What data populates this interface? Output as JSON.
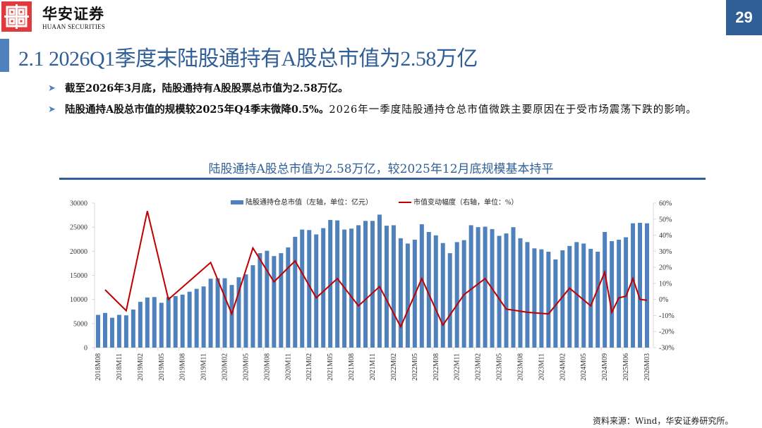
{
  "header": {
    "brand_cn": "华安证券",
    "brand_en": "HUAAN SECURITIES",
    "page_number": "29"
  },
  "title": "2.1 2026Q1季度末陆股通持有A股总市值为2.58万亿",
  "bullets": [
    {
      "bold": "截至2026年3月底，陆股通持有A股股票总市值为2.58万亿。",
      "normal": ""
    },
    {
      "bold": "陆股通持A股总市值的规模较2025年Q4季末微降0.5%。",
      "normal": "2026年一季度陆股通持仓总市值微跌主要原因在于受市场震荡下跌的影响。"
    }
  ],
  "chart_title": "陆股通持A股总市值为2.58万亿，较2025年12月底规模基本持平",
  "source": "资料来源：Wind，华安证券研究所。",
  "colors": {
    "bar": "#4f81bd",
    "line": "#c00000",
    "title_blue": "#2f5f96",
    "logo_red": "#e03a3e"
  },
  "chart_data": {
    "type": "bar+line",
    "title": "陆股通持A股总市值为2.58万亿，较2025年12月底规模基本持平",
    "legend": [
      "陆股通持仓总市值（左轴，单位：亿元）",
      "市值变动幅度（右轴，单位：%）"
    ],
    "legend_position": "top",
    "xlabel": "",
    "ylabel_left": "亿元",
    "ylabel_right": "%",
    "ylim_left": [
      0,
      30000
    ],
    "ylim_right": [
      -30,
      60
    ],
    "yticks_left": [
      "0",
      "5000",
      "10000",
      "15000",
      "20000",
      "25000",
      "30000"
    ],
    "yticks_right": [
      "-30%",
      "-20%",
      "-10%",
      "0%",
      "10%",
      "20%",
      "30%",
      "40%",
      "50%",
      "60%"
    ],
    "xtick_labels": [
      "2018M08",
      "2018M11",
      "2019M02",
      "2019M05",
      "2019M08",
      "2019M11",
      "2020M02",
      "2020M05",
      "2020M08",
      "2020M11",
      "2021M02",
      "2021M05",
      "2021M08",
      "2021M11",
      "2022M02",
      "2022M05",
      "2022M08",
      "2022M11",
      "2023M02",
      "2023M05",
      "2023M08",
      "2023M11",
      "2024M02",
      "2024M05",
      "2024M09",
      "2025M06",
      "2026M03"
    ],
    "grid": false,
    "series": [
      {
        "name": "陆股通持仓总市值（左轴，单位：亿元）",
        "type": "bar",
        "axis": "left",
        "values": [
          6800,
          7200,
          6200,
          6800,
          6700,
          7900,
          9500,
          10400,
          10500,
          9300,
          10500,
          10700,
          11000,
          11600,
          12200,
          12700,
          14300,
          14400,
          14400,
          13000,
          14600,
          15200,
          17100,
          19600,
          20100,
          19000,
          19600,
          20800,
          23000,
          24500,
          24400,
          23500,
          24800,
          26500,
          26400,
          24500,
          24700,
          25400,
          26300,
          26300,
          27600,
          25300,
          25400,
          22700,
          21600,
          22400,
          25600,
          24000,
          23300,
          21700,
          19600,
          21900,
          22300,
          25400,
          25000,
          25100,
          24600,
          23200,
          23700,
          25000,
          22700,
          21900,
          20600,
          20400,
          19900,
          18300,
          20200,
          21100,
          21900,
          21600,
          20500,
          19900,
          24000,
          22100,
          22400,
          22900,
          25800,
          25900,
          25800
        ],
        "labels": []
      },
      {
        "name": "市值变动幅度（右轴，单位：%）",
        "type": "line",
        "axis": "right",
        "points": [
          {
            "i": 1,
            "v": 6
          },
          {
            "i": 4,
            "v": -7
          },
          {
            "i": 7,
            "v": 55
          },
          {
            "i": 10,
            "v": 0
          },
          {
            "i": 16,
            "v": 23
          },
          {
            "i": 19,
            "v": -9
          },
          {
            "i": 22,
            "v": 32
          },
          {
            "i": 25,
            "v": 11
          },
          {
            "i": 28,
            "v": 24
          },
          {
            "i": 31,
            "v": 1
          },
          {
            "i": 34,
            "v": 13
          },
          {
            "i": 37,
            "v": -4
          },
          {
            "i": 40,
            "v": 8
          },
          {
            "i": 43,
            "v": -17
          },
          {
            "i": 46,
            "v": 13
          },
          {
            "i": 49,
            "v": -16
          },
          {
            "i": 52,
            "v": 3
          },
          {
            "i": 55,
            "v": 13
          },
          {
            "i": 58,
            "v": -6
          },
          {
            "i": 61,
            "v": -8
          },
          {
            "i": 64,
            "v": -9
          },
          {
            "i": 67,
            "v": 7
          },
          {
            "i": 70,
            "v": -4
          },
          {
            "i": 72,
            "v": 17
          },
          {
            "i": 73,
            "v": -8
          },
          {
            "i": 74,
            "v": 1
          },
          {
            "i": 75,
            "v": 2
          },
          {
            "i": 76,
            "v": 13
          },
          {
            "i": 77,
            "v": 0
          },
          {
            "i": 78,
            "v": -0.5
          }
        ]
      }
    ]
  }
}
